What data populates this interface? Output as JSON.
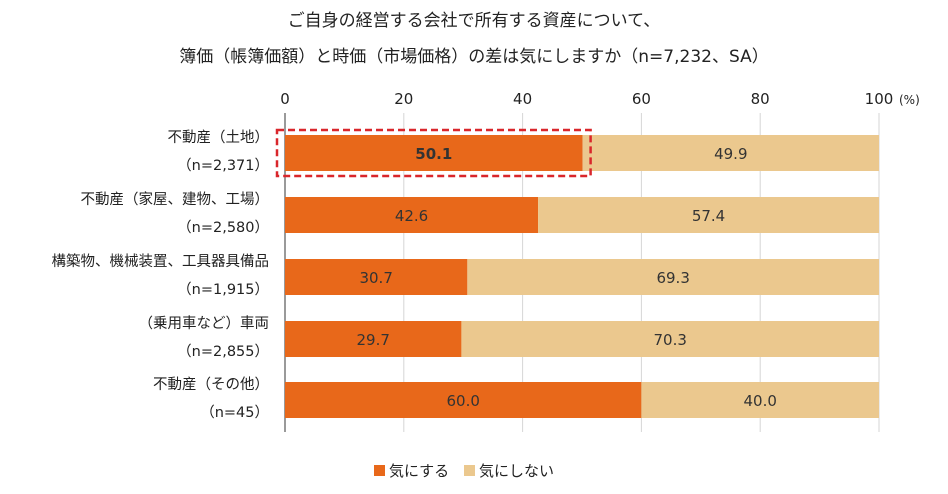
{
  "chart_data": {
    "type": "bar",
    "orientation": "horizontal",
    "stacked": true,
    "title": [
      "ご自身の経営する会社で所有する資産について、",
      "簿価（帳簿価額）と時価（市場価格）の差は気にしますか（n=7,232、SA）"
    ],
    "xlim": [
      0,
      100
    ],
    "x_ticks": [
      "0",
      "20",
      "40",
      "60",
      "80",
      "100"
    ],
    "unit_label": "(%)",
    "grid": true,
    "legend_position": "bottom",
    "categories": [
      [
        "不動産（土地）",
        "（n=2,371）"
      ],
      [
        "不動産（家屋、建物、工場）",
        "（n=2,580）"
      ],
      [
        "構築物、機械装置、工具器具備品",
        "（n=1,915）"
      ],
      [
        "（乗用車など）車両",
        "（n=2,855）"
      ],
      [
        "不動産（その他）",
        "（n=45）"
      ]
    ],
    "series": [
      {
        "name": "気にする",
        "color": "#E8681A",
        "values": [
          50.1,
          42.6,
          30.7,
          29.7,
          60.0
        ],
        "labels": [
          "50.1",
          "42.6",
          "30.7",
          "29.7",
          "60.0"
        ]
      },
      {
        "name": "気にしない",
        "color": "#EBC88E",
        "values": [
          49.9,
          57.4,
          69.3,
          70.3,
          40.0
        ],
        "labels": [
          "49.9",
          "57.4",
          "69.3",
          "70.3",
          "40.0"
        ]
      }
    ],
    "highlight": {
      "category_index": 0,
      "series_index": 0,
      "style": "red dashed box, bold label",
      "color": "#D9262B"
    }
  }
}
